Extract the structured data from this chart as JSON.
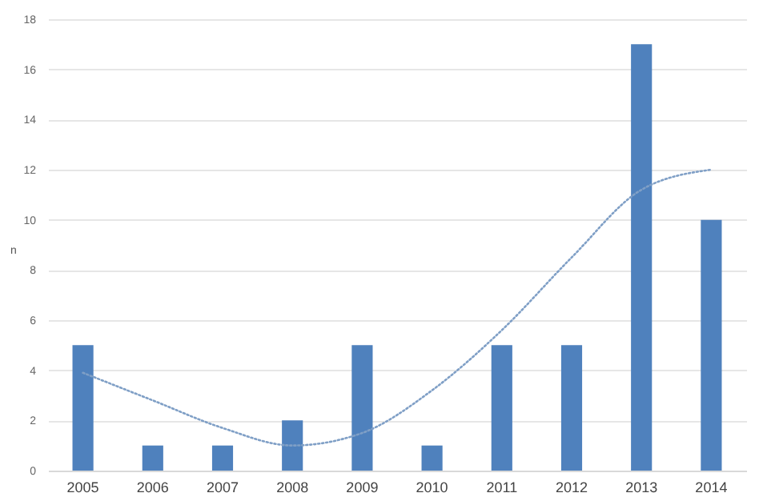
{
  "chart_data": {
    "type": "bar",
    "ylabel": "n",
    "categories": [
      "2005",
      "2006",
      "2007",
      "2008",
      "2009",
      "2010",
      "2011",
      "2012",
      "2013",
      "2014"
    ],
    "series": [
      {
        "color": "#4f81bd",
        "values": [
          5,
          1,
          1,
          2,
          5,
          1,
          5,
          5,
          17,
          10
        ]
      },
      {
        "type": "line",
        "color": "#7f9fc6",
        "line_style": "dotted",
        "values": [
          3.9,
          2.8,
          1.7,
          1.0,
          1.5,
          3.2,
          5.6,
          8.5,
          11.2,
          12.0
        ]
      }
    ],
    "ylim": [
      0,
      18
    ],
    "yticks": [
      0,
      2,
      4,
      6,
      8,
      10,
      12,
      14,
      16,
      18
    ],
    "grid": "y"
  }
}
